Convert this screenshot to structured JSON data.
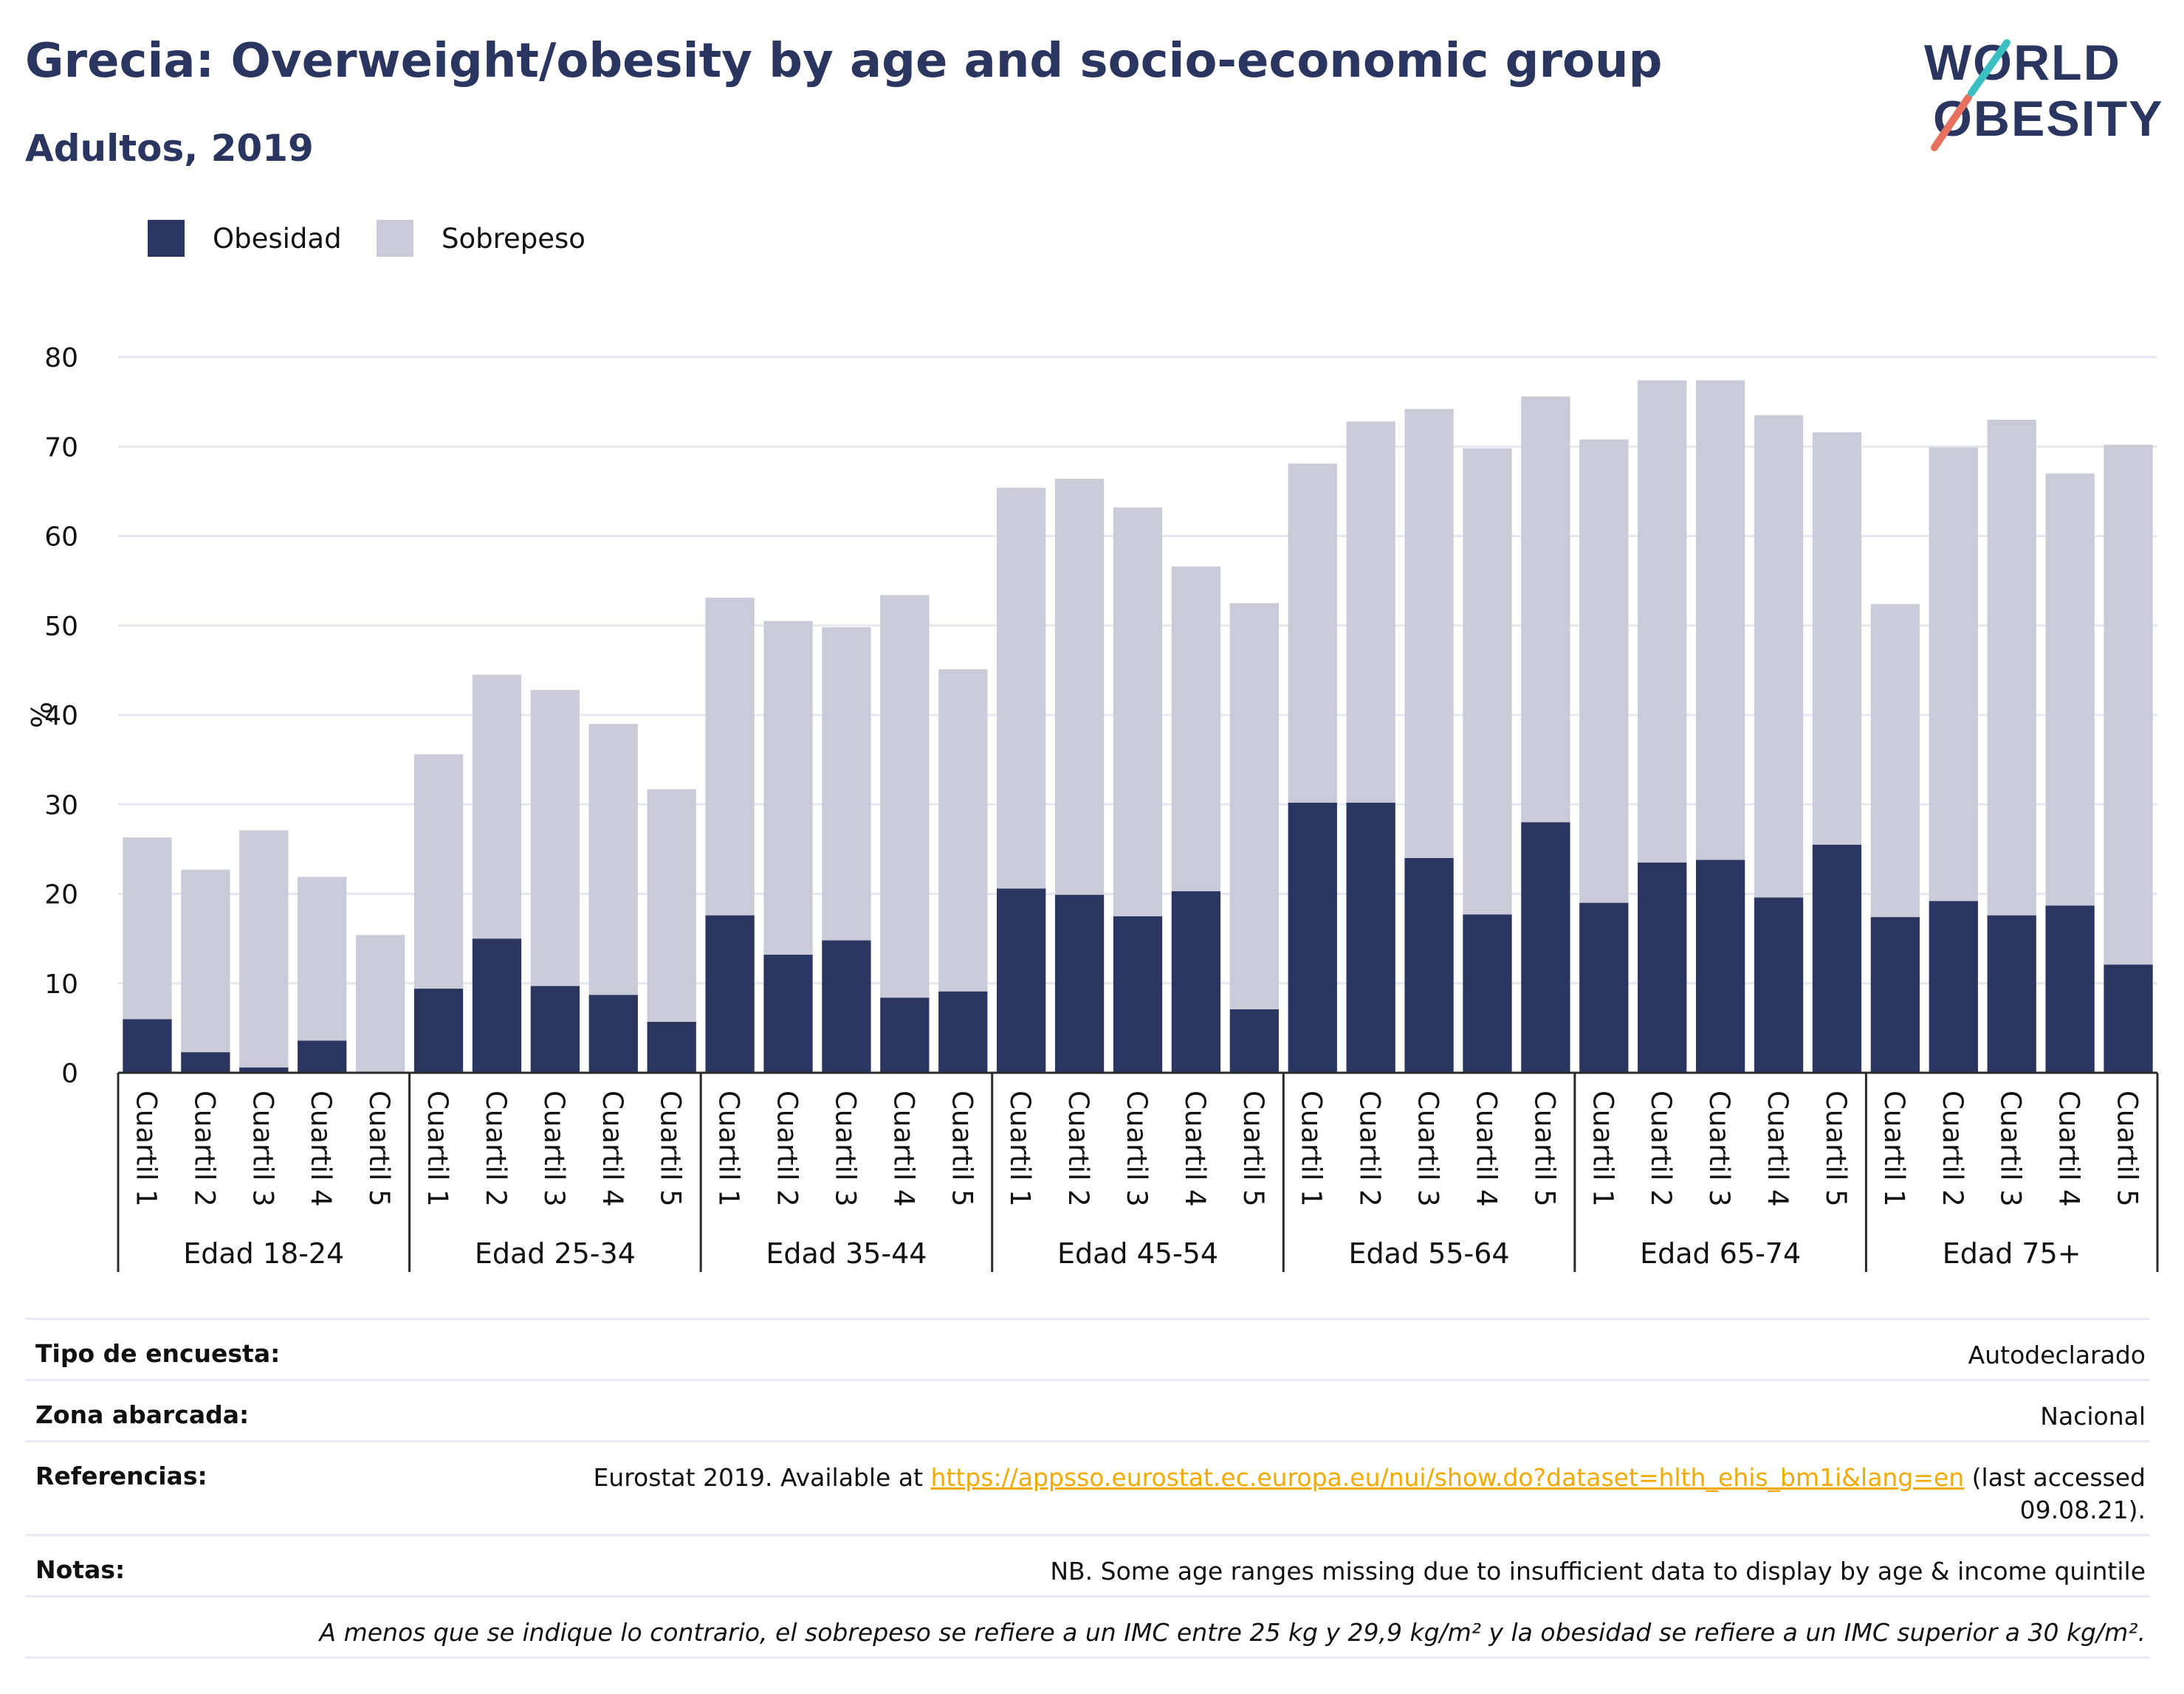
{
  "header": {
    "title": "Grecia: Overweight/obesity by age and socio-economic group",
    "subtitle": "Adultos, 2019"
  },
  "logo": {
    "line1": "WORLD",
    "line2": "OBESITY",
    "colors": [
      "#2a3560",
      "#e8705f",
      "#3cbfc0"
    ]
  },
  "legend": [
    {
      "label": "Obesidad",
      "color": "#2a3560"
    },
    {
      "label": "Sobrepeso",
      "color": "#c9cbd8"
    }
  ],
  "chart_data": {
    "type": "bar",
    "stacked": true,
    "ylabel": "%",
    "ylim": [
      0,
      80
    ],
    "yticks": [
      0,
      10,
      20,
      30,
      40,
      50,
      60,
      70,
      80
    ],
    "grid": true,
    "legend_position": "top-left",
    "groups": [
      "Edad 18-24",
      "Edad 25-34",
      "Edad 35-44",
      "Edad 45-54",
      "Edad 55-64",
      "Edad 65-74",
      "Edad 75+"
    ],
    "categories": [
      "Cuartil 1",
      "Cuartil 2",
      "Cuartil 3",
      "Cuartil 4",
      "Cuartil 5"
    ],
    "series": [
      {
        "name": "Obesidad",
        "color": "#2a3560",
        "values": [
          [
            6.0,
            2.3,
            0.6,
            3.6,
            0.0
          ],
          [
            9.4,
            15.0,
            9.7,
            8.7,
            5.7
          ],
          [
            17.6,
            13.2,
            14.8,
            8.4,
            9.1
          ],
          [
            20.6,
            19.9,
            17.5,
            20.3,
            7.1
          ],
          [
            30.2,
            30.2,
            24.0,
            17.7,
            28.0
          ],
          [
            19.0,
            23.5,
            23.8,
            19.6,
            25.5
          ],
          [
            17.4,
            19.2,
            17.6,
            18.7,
            12.1
          ]
        ]
      },
      {
        "name": "Sobrepeso",
        "color": "#c9cbd8",
        "values": [
          [
            20.3,
            20.4,
            26.5,
            18.3,
            15.4
          ],
          [
            26.2,
            29.5,
            33.1,
            30.3,
            26.0
          ],
          [
            35.5,
            37.3,
            35.0,
            45.0,
            36.0
          ],
          [
            44.8,
            46.5,
            45.7,
            36.3,
            45.4
          ],
          [
            37.9,
            42.6,
            50.2,
            52.1,
            47.6
          ],
          [
            51.8,
            53.9,
            53.6,
            53.9,
            46.1
          ],
          [
            35.0,
            50.7,
            55.4,
            48.3,
            58.1
          ]
        ]
      }
    ]
  },
  "info": {
    "rows": [
      {
        "label": "Tipo de encuesta:",
        "value": "Autodeclarado"
      },
      {
        "label": "Zona abarcada:",
        "value": "Nacional"
      },
      {
        "label": "Referencias:",
        "value_prefix": "Eurostat 2019. Available at ",
        "link": "https://appsso.eurostat.ec.europa.eu/nui/show.do?dataset=hlth_ehis_bm1i&lang=en",
        "value_suffix_1": " (last accessed",
        "value_suffix_2": "09.08.21)."
      },
      {
        "label": "Notas:",
        "value": "NB. Some age ranges missing due to insufficient data to display by age & income quintile"
      },
      {
        "label": "",
        "value": "A menos que se indique lo contrario, el sobrepeso se refiere a un IMC entre 25 kg y 29,9 kg/m² y la obesidad se refiere a un IMC superior a 30 kg/m²."
      }
    ]
  }
}
